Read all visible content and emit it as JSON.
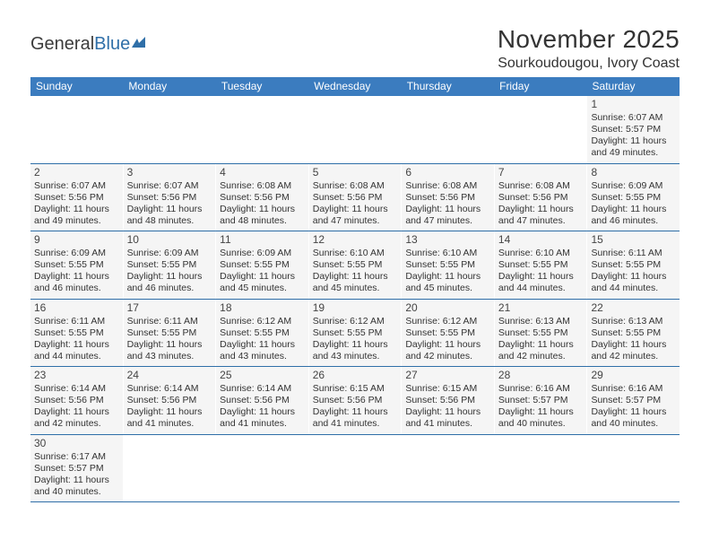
{
  "logo": {
    "text1": "General",
    "text2": "Blue"
  },
  "title": "November 2025",
  "location": "Sourkoudougou, Ivory Coast",
  "colors": {
    "header_bg": "#3b7cbf",
    "cell_bg": "#f5f5f5",
    "rule": "#2f6fa8",
    "text": "#333333"
  },
  "dayNames": [
    "Sunday",
    "Monday",
    "Tuesday",
    "Wednesday",
    "Thursday",
    "Friday",
    "Saturday"
  ],
  "weeks": [
    [
      null,
      null,
      null,
      null,
      null,
      null,
      {
        "n": "1",
        "sr": "Sunrise: 6:07 AM",
        "ss": "Sunset: 5:57 PM",
        "dl": "Daylight: 11 hours and 49 minutes."
      }
    ],
    [
      {
        "n": "2",
        "sr": "Sunrise: 6:07 AM",
        "ss": "Sunset: 5:56 PM",
        "dl": "Daylight: 11 hours and 49 minutes."
      },
      {
        "n": "3",
        "sr": "Sunrise: 6:07 AM",
        "ss": "Sunset: 5:56 PM",
        "dl": "Daylight: 11 hours and 48 minutes."
      },
      {
        "n": "4",
        "sr": "Sunrise: 6:08 AM",
        "ss": "Sunset: 5:56 PM",
        "dl": "Daylight: 11 hours and 48 minutes."
      },
      {
        "n": "5",
        "sr": "Sunrise: 6:08 AM",
        "ss": "Sunset: 5:56 PM",
        "dl": "Daylight: 11 hours and 47 minutes."
      },
      {
        "n": "6",
        "sr": "Sunrise: 6:08 AM",
        "ss": "Sunset: 5:56 PM",
        "dl": "Daylight: 11 hours and 47 minutes."
      },
      {
        "n": "7",
        "sr": "Sunrise: 6:08 AM",
        "ss": "Sunset: 5:56 PM",
        "dl": "Daylight: 11 hours and 47 minutes."
      },
      {
        "n": "8",
        "sr": "Sunrise: 6:09 AM",
        "ss": "Sunset: 5:55 PM",
        "dl": "Daylight: 11 hours and 46 minutes."
      }
    ],
    [
      {
        "n": "9",
        "sr": "Sunrise: 6:09 AM",
        "ss": "Sunset: 5:55 PM",
        "dl": "Daylight: 11 hours and 46 minutes."
      },
      {
        "n": "10",
        "sr": "Sunrise: 6:09 AM",
        "ss": "Sunset: 5:55 PM",
        "dl": "Daylight: 11 hours and 46 minutes."
      },
      {
        "n": "11",
        "sr": "Sunrise: 6:09 AM",
        "ss": "Sunset: 5:55 PM",
        "dl": "Daylight: 11 hours and 45 minutes."
      },
      {
        "n": "12",
        "sr": "Sunrise: 6:10 AM",
        "ss": "Sunset: 5:55 PM",
        "dl": "Daylight: 11 hours and 45 minutes."
      },
      {
        "n": "13",
        "sr": "Sunrise: 6:10 AM",
        "ss": "Sunset: 5:55 PM",
        "dl": "Daylight: 11 hours and 45 minutes."
      },
      {
        "n": "14",
        "sr": "Sunrise: 6:10 AM",
        "ss": "Sunset: 5:55 PM",
        "dl": "Daylight: 11 hours and 44 minutes."
      },
      {
        "n": "15",
        "sr": "Sunrise: 6:11 AM",
        "ss": "Sunset: 5:55 PM",
        "dl": "Daylight: 11 hours and 44 minutes."
      }
    ],
    [
      {
        "n": "16",
        "sr": "Sunrise: 6:11 AM",
        "ss": "Sunset: 5:55 PM",
        "dl": "Daylight: 11 hours and 44 minutes."
      },
      {
        "n": "17",
        "sr": "Sunrise: 6:11 AM",
        "ss": "Sunset: 5:55 PM",
        "dl": "Daylight: 11 hours and 43 minutes."
      },
      {
        "n": "18",
        "sr": "Sunrise: 6:12 AM",
        "ss": "Sunset: 5:55 PM",
        "dl": "Daylight: 11 hours and 43 minutes."
      },
      {
        "n": "19",
        "sr": "Sunrise: 6:12 AM",
        "ss": "Sunset: 5:55 PM",
        "dl": "Daylight: 11 hours and 43 minutes."
      },
      {
        "n": "20",
        "sr": "Sunrise: 6:12 AM",
        "ss": "Sunset: 5:55 PM",
        "dl": "Daylight: 11 hours and 42 minutes."
      },
      {
        "n": "21",
        "sr": "Sunrise: 6:13 AM",
        "ss": "Sunset: 5:55 PM",
        "dl": "Daylight: 11 hours and 42 minutes."
      },
      {
        "n": "22",
        "sr": "Sunrise: 6:13 AM",
        "ss": "Sunset: 5:55 PM",
        "dl": "Daylight: 11 hours and 42 minutes."
      }
    ],
    [
      {
        "n": "23",
        "sr": "Sunrise: 6:14 AM",
        "ss": "Sunset: 5:56 PM",
        "dl": "Daylight: 11 hours and 42 minutes."
      },
      {
        "n": "24",
        "sr": "Sunrise: 6:14 AM",
        "ss": "Sunset: 5:56 PM",
        "dl": "Daylight: 11 hours and 41 minutes."
      },
      {
        "n": "25",
        "sr": "Sunrise: 6:14 AM",
        "ss": "Sunset: 5:56 PM",
        "dl": "Daylight: 11 hours and 41 minutes."
      },
      {
        "n": "26",
        "sr": "Sunrise: 6:15 AM",
        "ss": "Sunset: 5:56 PM",
        "dl": "Daylight: 11 hours and 41 minutes."
      },
      {
        "n": "27",
        "sr": "Sunrise: 6:15 AM",
        "ss": "Sunset: 5:56 PM",
        "dl": "Daylight: 11 hours and 41 minutes."
      },
      {
        "n": "28",
        "sr": "Sunrise: 6:16 AM",
        "ss": "Sunset: 5:57 PM",
        "dl": "Daylight: 11 hours and 40 minutes."
      },
      {
        "n": "29",
        "sr": "Sunrise: 6:16 AM",
        "ss": "Sunset: 5:57 PM",
        "dl": "Daylight: 11 hours and 40 minutes."
      }
    ],
    [
      {
        "n": "30",
        "sr": "Sunrise: 6:17 AM",
        "ss": "Sunset: 5:57 PM",
        "dl": "Daylight: 11 hours and 40 minutes."
      },
      null,
      null,
      null,
      null,
      null,
      null
    ]
  ]
}
